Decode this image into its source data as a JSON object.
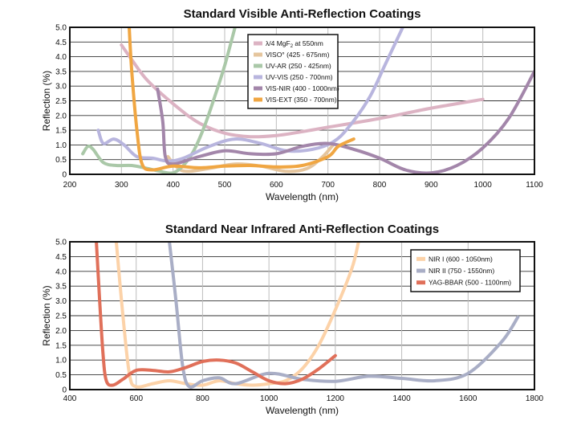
{
  "chart_data": [
    {
      "type": "line",
      "title": "Standard Visible Anti-Reflection Coatings",
      "xlabel": "Wavelength (nm)",
      "ylabel": "Reflection (%)",
      "xlim": [
        200,
        1100
      ],
      "ylim": [
        0,
        5
      ],
      "xticks": [
        "200",
        "300",
        "400",
        "500",
        "600",
        "700",
        "800",
        "900",
        "1000",
        "1100"
      ],
      "yticks": [
        "0",
        "0.5",
        "1.0",
        "1.5",
        "2.0",
        "2.5",
        "3.0",
        "3.5",
        "4.0",
        "4.5",
        "5.0"
      ],
      "grid": true,
      "legend_position": "top-center",
      "series": [
        {
          "name": "λ/4 MgF₂ at 550nm",
          "legend_main": "λ/4 MgF",
          "legend_sub": "2",
          "legend_tail": " at 550nm",
          "color": "#dcb3c3",
          "points": [
            [
              300,
              4.4
            ],
            [
              320,
              3.9
            ],
            [
              350,
              3.2
            ],
            [
              400,
              2.4
            ],
            [
              450,
              1.75
            ],
            [
              500,
              1.4
            ],
            [
              550,
              1.28
            ],
            [
              600,
              1.32
            ],
            [
              650,
              1.45
            ],
            [
              700,
              1.6
            ],
            [
              800,
              1.9
            ],
            [
              900,
              2.25
            ],
            [
              1000,
              2.55
            ]
          ]
        },
        {
          "name": "VISO° (425 - 675nm)",
          "legend_main": "VISO° (425 - 675nm)",
          "color": "#e5c59d",
          "points": [
            [
              390,
              0.6
            ],
            [
              410,
              0.2
            ],
            [
              430,
              0.1
            ],
            [
              470,
              0.2
            ],
            [
              520,
              0.35
            ],
            [
              570,
              0.28
            ],
            [
              620,
              0.1
            ],
            [
              660,
              0.2
            ],
            [
              690,
              0.6
            ],
            [
              710,
              1.0
            ]
          ]
        },
        {
          "name": "UV-AR (250 - 425nm)",
          "legend_main": "UV-AR (250 - 425nm)",
          "color": "#aac8a8",
          "points": [
            [
              225,
              0.7
            ],
            [
              235,
              0.95
            ],
            [
              245,
              0.85
            ],
            [
              265,
              0.4
            ],
            [
              290,
              0.3
            ],
            [
              320,
              0.3
            ],
            [
              350,
              0.2
            ],
            [
              375,
              0.1
            ],
            [
              400,
              0.05
            ],
            [
              420,
              0.3
            ],
            [
              440,
              0.8
            ],
            [
              460,
              1.6
            ],
            [
              480,
              2.6
            ],
            [
              500,
              3.7
            ],
            [
              520,
              5.0
            ]
          ]
        },
        {
          "name": "UV-VIS (250 - 700nm)",
          "legend_main": "UV-VIS (250 - 700nm)",
          "color": "#b8b5de",
          "points": [
            [
              255,
              1.5
            ],
            [
              265,
              1.05
            ],
            [
              285,
              1.2
            ],
            [
              305,
              1.0
            ],
            [
              330,
              0.6
            ],
            [
              360,
              0.55
            ],
            [
              390,
              0.45
            ],
            [
              420,
              0.55
            ],
            [
              470,
              0.95
            ],
            [
              520,
              1.2
            ],
            [
              570,
              1.05
            ],
            [
              620,
              0.8
            ],
            [
              670,
              0.85
            ],
            [
              710,
              1.1
            ],
            [
              740,
              1.6
            ],
            [
              780,
              2.6
            ],
            [
              810,
              3.7
            ],
            [
              845,
              5.0
            ]
          ]
        },
        {
          "name": "VIS-NIR (400 - 1000nm)",
          "legend_main": "VIS-NIR (400 - 1000nm)",
          "color": "#a386aa",
          "points": [
            [
              370,
              2.9
            ],
            [
              380,
              1.8
            ],
            [
              385,
              0.6
            ],
            [
              400,
              0.35
            ],
            [
              450,
              0.6
            ],
            [
              500,
              0.8
            ],
            [
              550,
              0.7
            ],
            [
              600,
              0.7
            ],
            [
              650,
              0.95
            ],
            [
              700,
              1.05
            ],
            [
              750,
              0.85
            ],
            [
              800,
              0.55
            ],
            [
              850,
              0.15
            ],
            [
              900,
              0.05
            ],
            [
              950,
              0.3
            ],
            [
              1000,
              0.9
            ],
            [
              1050,
              1.9
            ],
            [
              1100,
              3.5
            ]
          ]
        },
        {
          "name": "VIS-EXT (350 - 700nm)",
          "legend_main": "VIS-EXT (350 - 700nm)",
          "color": "#f0a642",
          "points": [
            [
              315,
              5.0
            ],
            [
              320,
              3.5
            ],
            [
              330,
              1.5
            ],
            [
              340,
              0.35
            ],
            [
              360,
              0.15
            ],
            [
              400,
              0.28
            ],
            [
              450,
              0.22
            ],
            [
              500,
              0.28
            ],
            [
              550,
              0.3
            ],
            [
              600,
              0.25
            ],
            [
              650,
              0.3
            ],
            [
              700,
              0.6
            ],
            [
              720,
              0.95
            ],
            [
              750,
              1.2
            ]
          ]
        }
      ]
    },
    {
      "type": "line",
      "title": "Standard Near Infrared Anti-Reflection Coatings",
      "xlabel": "Wavelength (nm)",
      "ylabel": "Reflection (%)",
      "xlim": [
        400,
        1800
      ],
      "ylim": [
        0,
        5
      ],
      "xticks": [
        "400",
        "600",
        "800",
        "1000",
        "1200",
        "1400",
        "1600",
        "1800"
      ],
      "yticks": [
        "0",
        "0.5",
        "1.0",
        "1.5",
        "2.0",
        "2.5",
        "3.0",
        "3.5",
        "4.0",
        "4.5",
        "5.0"
      ],
      "grid": true,
      "legend_position": "top-right",
      "series": [
        {
          "name": "NIR I (600 - 1050nm)",
          "legend_main": "NIR I (600 - 1050nm)",
          "color": "#fcd2a8",
          "points": [
            [
              540,
              5.0
            ],
            [
              560,
              2.5
            ],
            [
              580,
              0.5
            ],
            [
              600,
              0.1
            ],
            [
              650,
              0.2
            ],
            [
              700,
              0.3
            ],
            [
              750,
              0.2
            ],
            [
              800,
              0.15
            ],
            [
              850,
              0.3
            ],
            [
              900,
              0.2
            ],
            [
              950,
              0.15
            ],
            [
              1000,
              0.2
            ],
            [
              1050,
              0.3
            ],
            [
              1100,
              0.7
            ],
            [
              1150,
              1.5
            ],
            [
              1200,
              2.7
            ],
            [
              1250,
              4.1
            ],
            [
              1270,
              5.0
            ]
          ]
        },
        {
          "name": "NIR II (750 - 1550nm)",
          "legend_main": "NIR II (750 - 1550nm)",
          "color": "#a9aec6",
          "points": [
            [
              700,
              5.0
            ],
            [
              720,
              3.0
            ],
            [
              740,
              0.8
            ],
            [
              760,
              0.1
            ],
            [
              800,
              0.3
            ],
            [
              850,
              0.4
            ],
            [
              900,
              0.2
            ],
            [
              1000,
              0.55
            ],
            [
              1100,
              0.35
            ],
            [
              1200,
              0.28
            ],
            [
              1300,
              0.45
            ],
            [
              1400,
              0.38
            ],
            [
              1500,
              0.3
            ],
            [
              1600,
              0.55
            ],
            [
              1700,
              1.6
            ],
            [
              1750,
              2.45
            ]
          ]
        },
        {
          "name": "YAG-BBAR (500 - 1100nm)",
          "legend_main": "YAG-BBAR (500 - 1100nm)",
          "color": "#e0705a",
          "points": [
            [
              480,
              5.0
            ],
            [
              490,
              3.0
            ],
            [
              500,
              1.2
            ],
            [
              510,
              0.3
            ],
            [
              530,
              0.15
            ],
            [
              560,
              0.35
            ],
            [
              600,
              0.65
            ],
            [
              650,
              0.65
            ],
            [
              700,
              0.6
            ],
            [
              750,
              0.75
            ],
            [
              800,
              0.95
            ],
            [
              850,
              1.0
            ],
            [
              900,
              0.9
            ],
            [
              950,
              0.6
            ],
            [
              1000,
              0.3
            ],
            [
              1050,
              0.2
            ],
            [
              1100,
              0.35
            ],
            [
              1150,
              0.7
            ],
            [
              1200,
              1.15
            ]
          ]
        }
      ]
    }
  ]
}
